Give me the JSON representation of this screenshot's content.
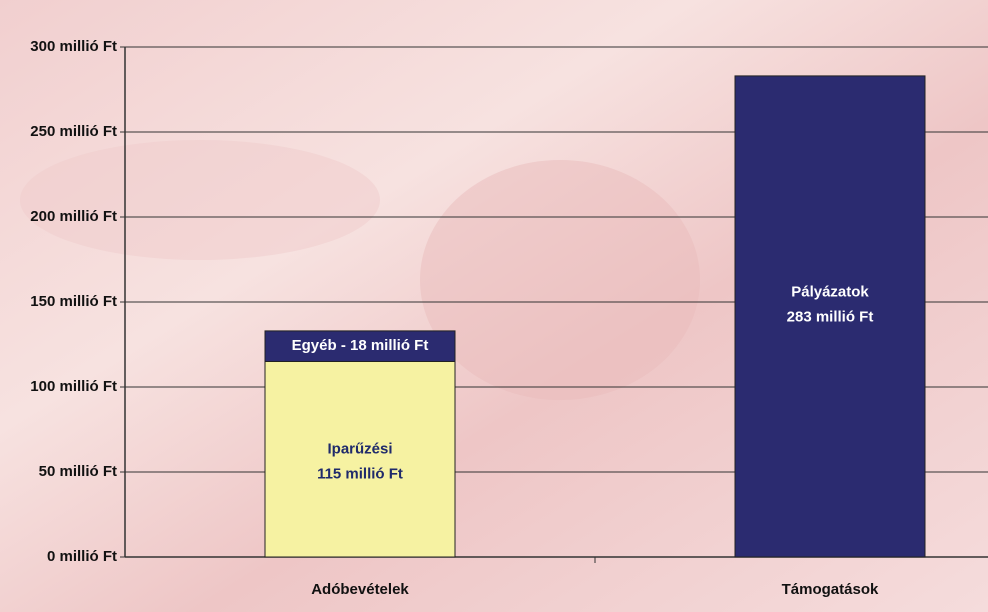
{
  "chart_data": {
    "type": "stacked-bar",
    "categories": [
      "Adóbevételek",
      "Támogatások"
    ],
    "series": [
      {
        "name": "Iparűzési",
        "color": "#f6f2a2",
        "label_color": "#1f2a6b",
        "values": [
          115,
          null
        ],
        "value_labels": [
          "115 millió Ft",
          null
        ]
      },
      {
        "name": "Egyéb - 18 millió Ft",
        "color": "#2b2b70",
        "label_color": "#ffffff",
        "values": [
          18,
          null
        ]
      },
      {
        "name": "Pályázatok",
        "color": "#2b2b70",
        "label_color": "#ffffff",
        "values": [
          null,
          283
        ],
        "value_labels": [
          null,
          "283 millió Ft"
        ]
      }
    ],
    "ylim": [
      0,
      300
    ],
    "yticks": [
      {
        "value": 0,
        "label": "0 millió Ft"
      },
      {
        "value": 50,
        "label": "50 millió Ft"
      },
      {
        "value": 100,
        "label": "100 millió Ft"
      },
      {
        "value": 150,
        "label": "150 millió Ft"
      },
      {
        "value": 200,
        "label": "200 millió Ft"
      },
      {
        "value": 250,
        "label": "250 millió Ft"
      },
      {
        "value": 300,
        "label": "300 millió Ft"
      }
    ],
    "grid": true
  }
}
